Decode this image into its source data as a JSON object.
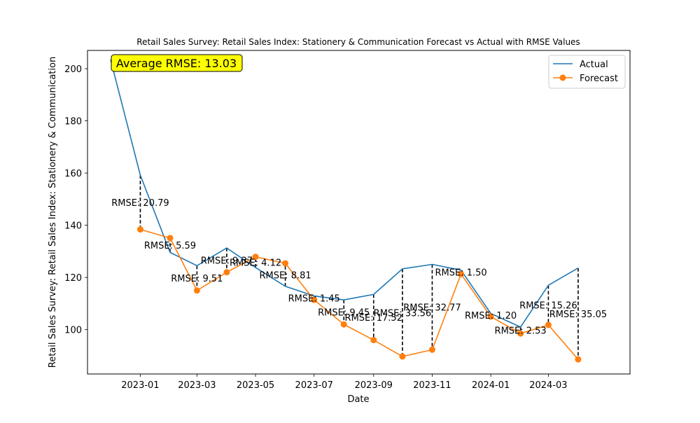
{
  "chart_data": {
    "type": "line",
    "title": "Retail Sales Survey: Retail Sales Index: Stationery & Communication Forecast vs Actual with RMSE Values",
    "xlabel": "Date",
    "ylabel": "Retail Sales Survey: Retail Sales Index: Stationery & Communication",
    "xlim": [
      "2022-11-07",
      "2024-05-25"
    ],
    "ylim": [
      83,
      207
    ],
    "x_ticks": [
      "2023-01",
      "2023-03",
      "2023-05",
      "2023-07",
      "2023-09",
      "2023-11",
      "2024-01",
      "2024-03"
    ],
    "y_ticks": [
      100,
      120,
      140,
      160,
      180,
      200
    ],
    "grid": false,
    "legend_position": "upper right",
    "series": [
      {
        "name": "Actual",
        "color": "#1f77b4",
        "marker": "none",
        "points": [
          {
            "date": "2022-12-01",
            "value": 203.5
          },
          {
            "date": "2023-01-01",
            "value": 159.2
          },
          {
            "date": "2023-02-01",
            "value": 129.6
          },
          {
            "date": "2023-03-01",
            "value": 124.5
          },
          {
            "date": "2023-04-01",
            "value": 131.3
          },
          {
            "date": "2023-05-01",
            "value": 123.8
          },
          {
            "date": "2023-06-01",
            "value": 116.6
          },
          {
            "date": "2023-07-01",
            "value": 112.9
          },
          {
            "date": "2023-08-01",
            "value": 111.4
          },
          {
            "date": "2023-09-01",
            "value": 113.5
          },
          {
            "date": "2023-10-01",
            "value": 123.3
          },
          {
            "date": "2023-11-01",
            "value": 125.0
          },
          {
            "date": "2023-12-01",
            "value": 122.8
          },
          {
            "date": "2024-01-01",
            "value": 106.2
          },
          {
            "date": "2024-02-01",
            "value": 101.0
          },
          {
            "date": "2024-03-01",
            "value": 117.0
          },
          {
            "date": "2024-04-01",
            "value": 123.6
          }
        ]
      },
      {
        "name": "Forecast",
        "color": "#ff7f0e",
        "marker": "circle",
        "points": [
          {
            "date": "2023-01-01",
            "value": 138.4
          },
          {
            "date": "2023-02-01",
            "value": 135.1
          },
          {
            "date": "2023-03-01",
            "value": 115.0
          },
          {
            "date": "2023-04-01",
            "value": 122.0
          },
          {
            "date": "2023-05-01",
            "value": 127.9
          },
          {
            "date": "2023-06-01",
            "value": 125.4
          },
          {
            "date": "2023-07-01",
            "value": 111.4
          },
          {
            "date": "2023-08-01",
            "value": 102.0
          },
          {
            "date": "2023-09-01",
            "value": 96.0
          },
          {
            "date": "2023-10-01",
            "value": 89.7
          },
          {
            "date": "2023-11-01",
            "value": 92.3
          },
          {
            "date": "2023-12-01",
            "value": 121.3
          },
          {
            "date": "2024-01-01",
            "value": 105.0
          },
          {
            "date": "2024-02-01",
            "value": 98.5
          },
          {
            "date": "2024-03-01",
            "value": 101.8
          },
          {
            "date": "2024-04-01",
            "value": 88.6
          }
        ]
      }
    ],
    "rmse_labels": [
      {
        "date": "2023-01-01",
        "text": "RMSE: 20.79"
      },
      {
        "date": "2023-02-01",
        "text": "RMSE: 5.59"
      },
      {
        "date": "2023-03-01",
        "text": "RMSE: 9.51"
      },
      {
        "date": "2023-04-01",
        "text": "RMSE: 9.37"
      },
      {
        "date": "2023-05-01",
        "text": "RMSE: 4.12"
      },
      {
        "date": "2023-06-01",
        "text": "RMSE: 8.81"
      },
      {
        "date": "2023-07-01",
        "text": "RMSE: 1.45"
      },
      {
        "date": "2023-08-01",
        "text": "RMSE: 9.45"
      },
      {
        "date": "2023-09-01",
        "text": "RMSE: 17.52"
      },
      {
        "date": "2023-10-01",
        "text": "RMSE: 33.56"
      },
      {
        "date": "2023-11-01",
        "text": "RMSE: 32.77"
      },
      {
        "date": "2023-12-01",
        "text": "RMSE: 1.50"
      },
      {
        "date": "2024-01-01",
        "text": "RMSE: 1.20"
      },
      {
        "date": "2024-02-01",
        "text": "RMSE: 2.53"
      },
      {
        "date": "2024-03-01",
        "text": "RMSE: 15.26"
      },
      {
        "date": "2024-04-01",
        "text": "RMSE: 35.05"
      }
    ],
    "average_rmse_label": "Average RMSE: 13.03",
    "average_rmse_box_color": "#ffff00"
  }
}
